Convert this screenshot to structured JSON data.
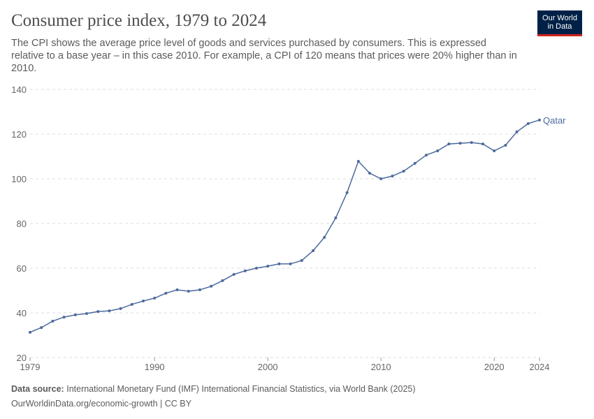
{
  "header": {
    "title": "Consumer price index, 1979 to 2024",
    "subtitle": "The CPI shows the average price level of goods and services purchased by consumers. This is expressed relative to a base year – in this case 2010. For example, a CPI of 120 means that prices were 20% higher than in 2010.",
    "logo_line1": "Our World",
    "logo_line2": "in Data"
  },
  "chart_data": {
    "type": "line",
    "title": "Consumer price index, 1979 to 2024",
    "xlabel": "",
    "ylabel": "",
    "xlim": [
      1979,
      2024
    ],
    "ylim": [
      20,
      140
    ],
    "yticks": [
      20,
      40,
      60,
      80,
      100,
      120,
      140
    ],
    "xticks": [
      1979,
      1990,
      2000,
      2010,
      2020,
      2024
    ],
    "grid": "horizontal dashed",
    "legend": "inline label at line end",
    "colors": {
      "series": "#4c6a9c"
    },
    "series": [
      {
        "name": "Qatar",
        "x": [
          1979,
          1980,
          1981,
          1982,
          1983,
          1984,
          1985,
          1986,
          1987,
          1988,
          1989,
          1990,
          1991,
          1992,
          1993,
          1994,
          1995,
          1996,
          1997,
          1998,
          1999,
          2000,
          2001,
          2002,
          2003,
          2004,
          2005,
          2006,
          2007,
          2008,
          2009,
          2010,
          2011,
          2012,
          2013,
          2014,
          2015,
          2016,
          2017,
          2018,
          2019,
          2020,
          2021,
          2022,
          2023,
          2024
        ],
        "values": [
          31.3,
          33.4,
          36.3,
          38.1,
          39.1,
          39.7,
          40.6,
          40.9,
          41.9,
          43.8,
          45.3,
          46.6,
          48.8,
          50.3,
          49.7,
          50.3,
          51.9,
          54.4,
          57.2,
          58.8,
          60.0,
          60.9,
          61.9,
          61.9,
          63.4,
          67.8,
          73.8,
          82.5,
          93.8,
          107.8,
          102.5,
          100.0,
          101.2,
          103.4,
          106.9,
          110.6,
          112.5,
          115.6,
          115.9,
          116.2,
          115.6,
          112.5,
          115.0,
          121.0,
          124.7,
          126.3
        ]
      }
    ]
  },
  "footer": {
    "source_label": "Data source:",
    "source_text": "International Monetary Fund (IMF) International Financial Statistics, via World Bank (2025)",
    "url_license": "OurWorldinData.org/economic-growth | CC BY"
  }
}
